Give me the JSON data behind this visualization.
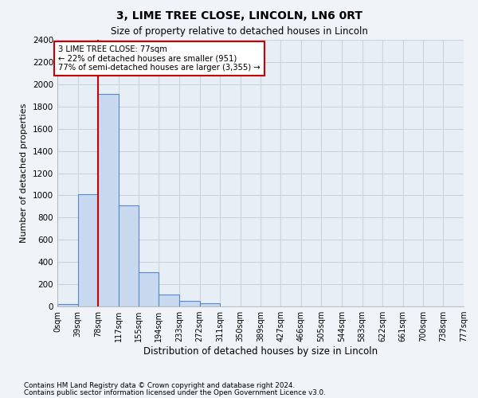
{
  "title": "3, LIME TREE CLOSE, LINCOLN, LN6 0RT",
  "subtitle": "Size of property relative to detached houses in Lincoln",
  "xlabel": "Distribution of detached houses by size in Lincoln",
  "ylabel": "Number of detached properties",
  "footnote1": "Contains HM Land Registry data © Crown copyright and database right 2024.",
  "footnote2": "Contains public sector information licensed under the Open Government Licence v3.0.",
  "property_size": 77,
  "annotation_line1": "3 LIME TREE CLOSE: 77sqm",
  "annotation_line2": "← 22% of detached houses are smaller (951)",
  "annotation_line3": "77% of semi-detached houses are larger (3,355) →",
  "bar_edges": [
    0,
    39,
    78,
    117,
    155,
    194,
    233,
    272,
    311,
    350,
    389,
    427,
    466,
    505,
    544,
    583,
    622,
    661,
    700,
    738,
    777
  ],
  "bar_heights": [
    20,
    1010,
    1910,
    910,
    305,
    105,
    50,
    30,
    0,
    0,
    0,
    0,
    0,
    0,
    0,
    0,
    0,
    0,
    0,
    0
  ],
  "bar_color": "#c8d8ee",
  "bar_edge_color": "#5588cc",
  "red_line_color": "#cc0000",
  "grid_color": "#c8d4e0",
  "background_color": "#f0f4f8",
  "plot_bg_color": "#e8eef5",
  "ylim": [
    0,
    2400
  ],
  "yticks": [
    0,
    200,
    400,
    600,
    800,
    1000,
    1200,
    1400,
    1600,
    1800,
    2000,
    2200,
    2400
  ]
}
